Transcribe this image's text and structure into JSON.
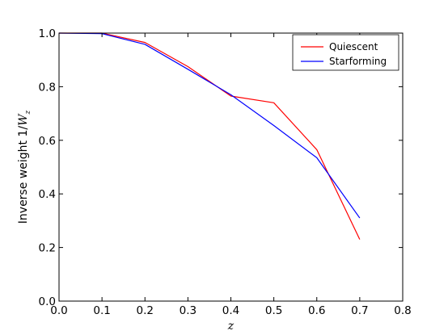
{
  "chart_data": {
    "type": "line",
    "title": "",
    "xlabel": "z",
    "ylabel_prefix": "Inverse weight 1/",
    "ylabel_math": "W",
    "ylabel_sub": "z",
    "xlim": [
      0.0,
      0.8
    ],
    "ylim": [
      0.0,
      1.0
    ],
    "x_ticks": [
      "0.0",
      "0.1",
      "0.2",
      "0.3",
      "0.4",
      "0.5",
      "0.6",
      "0.7",
      "0.8"
    ],
    "y_ticks": [
      "0.0",
      "0.2",
      "0.4",
      "0.6",
      "0.8",
      "1.0"
    ],
    "grid": false,
    "legend_position": "top-right",
    "series": [
      {
        "name": "Quiescent",
        "color": "#ff0000",
        "points": [
          [
            0.0,
            1.0
          ],
          [
            0.1,
            1.0
          ],
          [
            0.2,
            0.965
          ],
          [
            0.3,
            0.875
          ],
          [
            0.4,
            0.765
          ],
          [
            0.5,
            0.74
          ],
          [
            0.6,
            0.565
          ],
          [
            0.7,
            0.23
          ]
        ]
      },
      {
        "name": "Starforming",
        "color": "#0000ff",
        "points": [
          [
            0.0,
            1.0
          ],
          [
            0.1,
            0.998
          ],
          [
            0.2,
            0.958
          ],
          [
            0.3,
            0.865
          ],
          [
            0.4,
            0.77
          ],
          [
            0.5,
            0.655
          ],
          [
            0.6,
            0.535
          ],
          [
            0.7,
            0.31
          ]
        ]
      }
    ]
  }
}
